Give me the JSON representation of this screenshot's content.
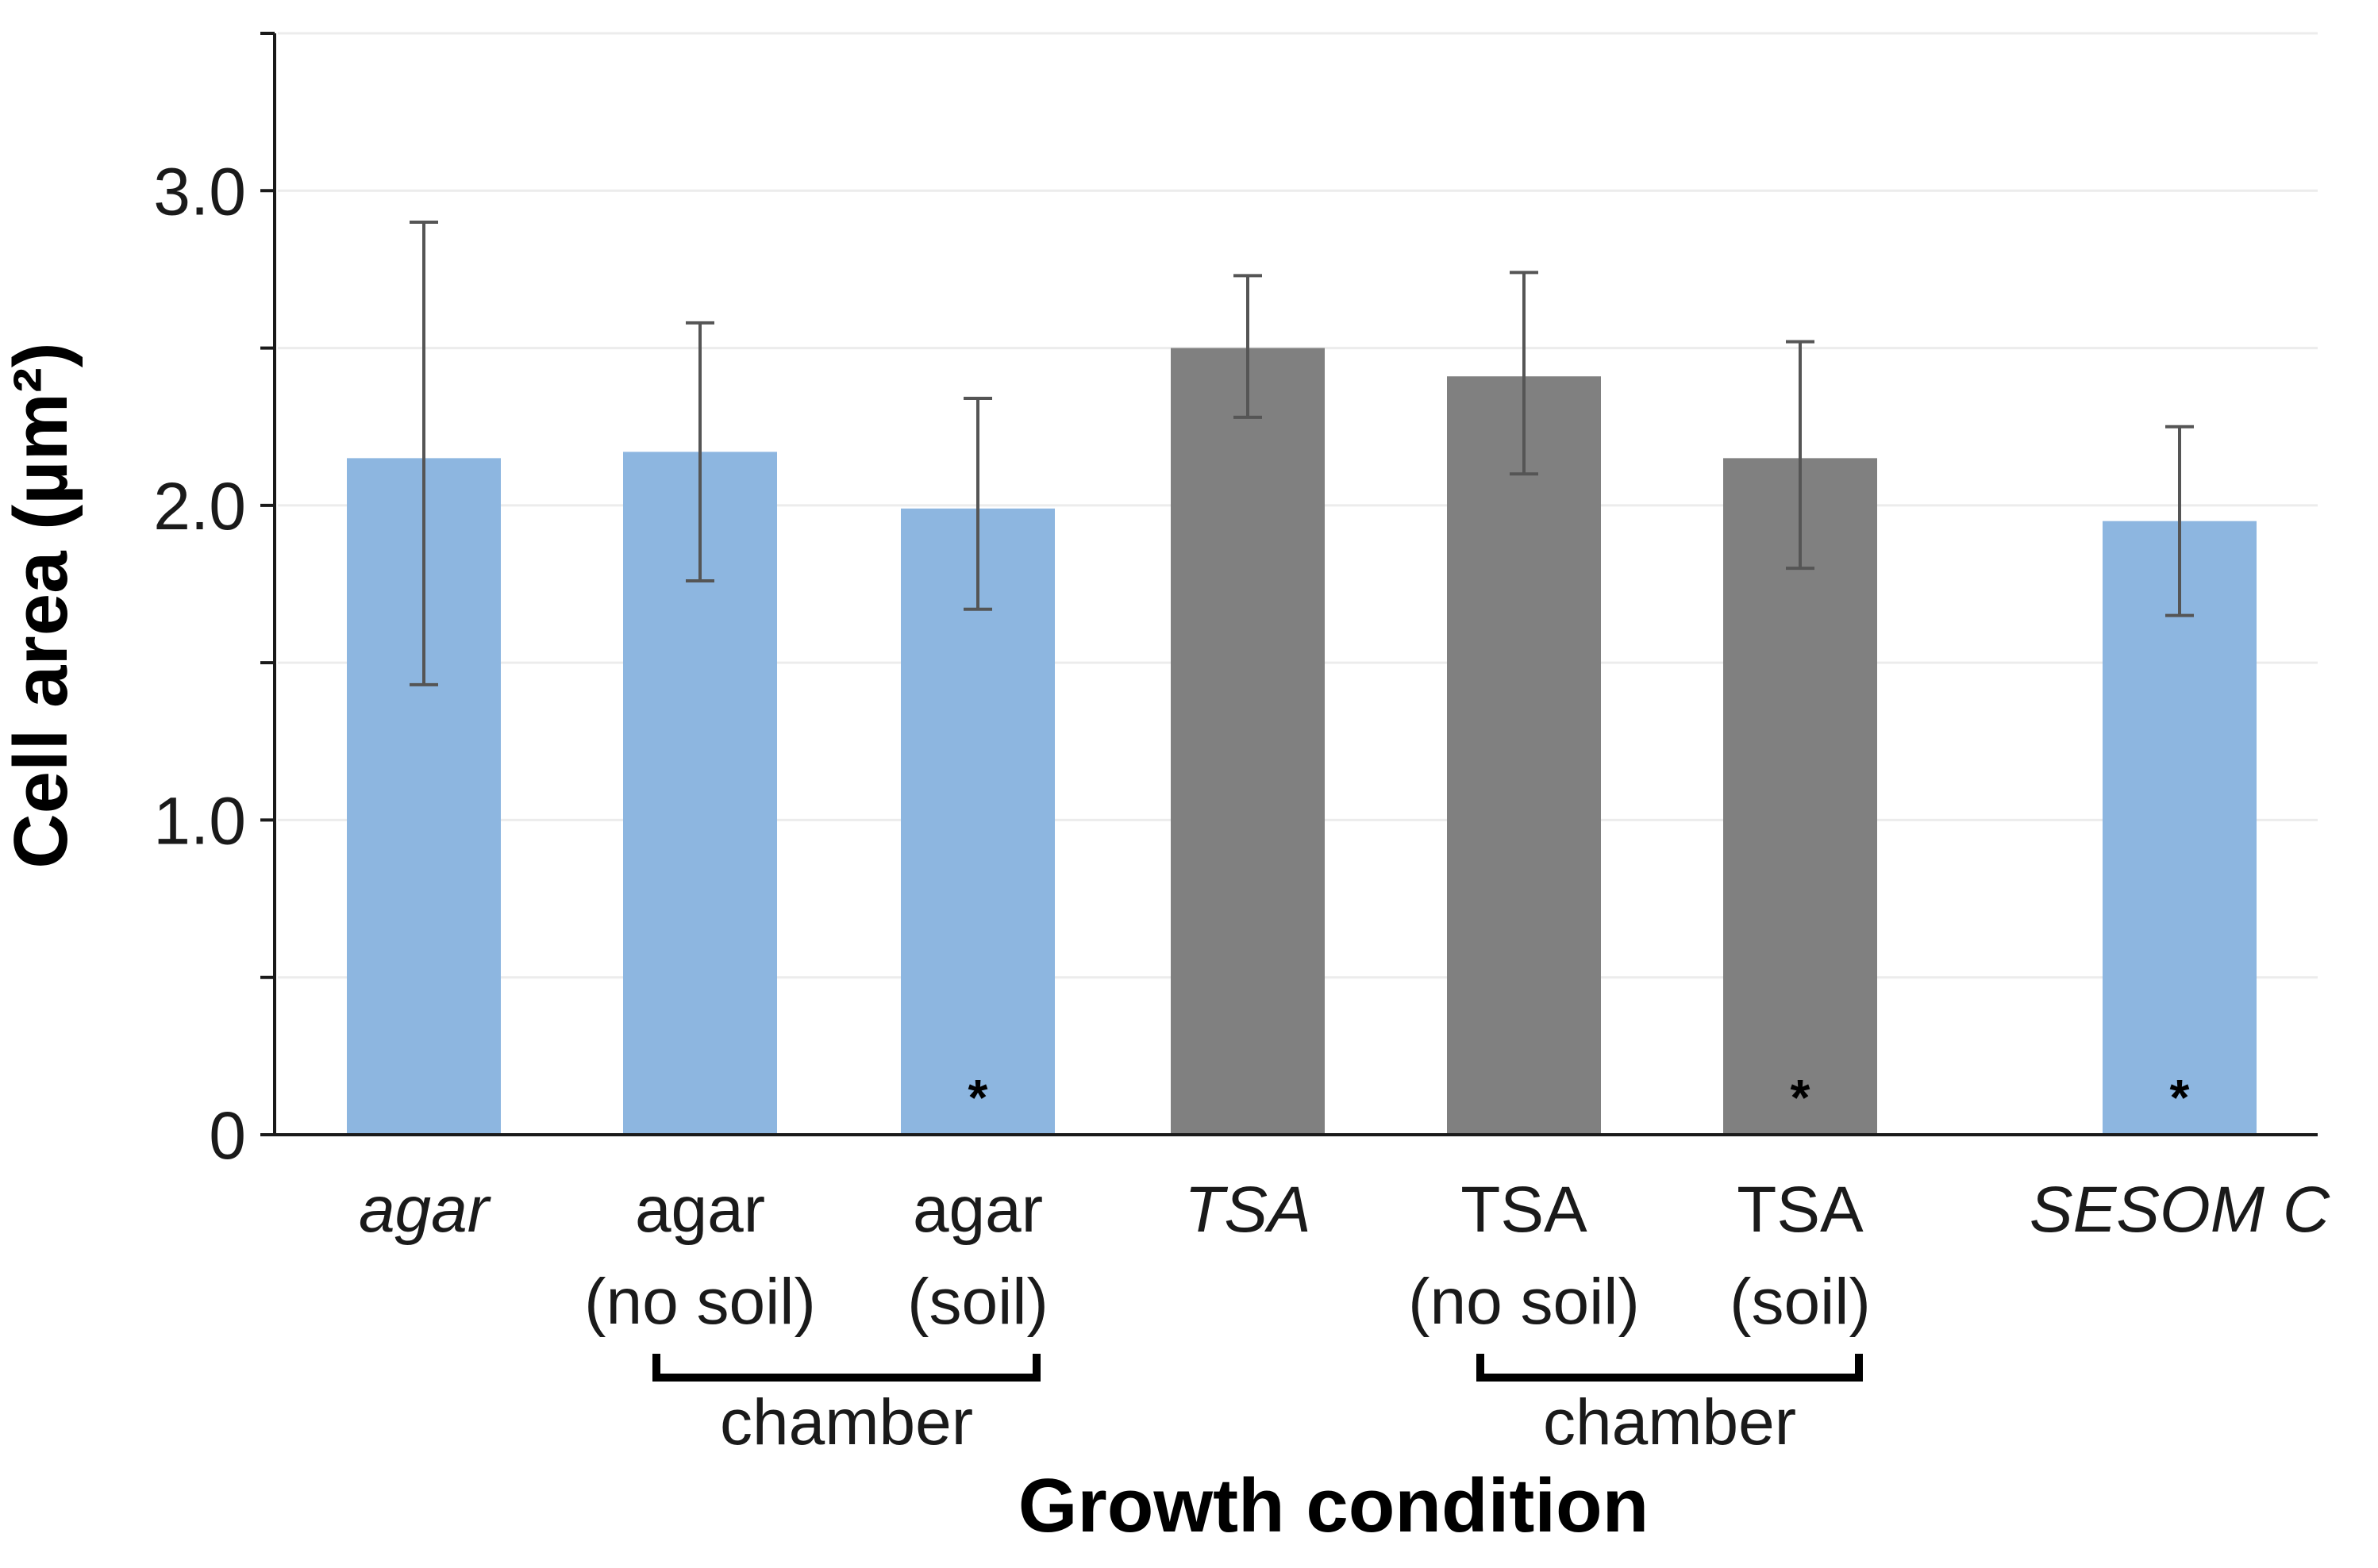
{
  "chart_data": {
    "type": "bar",
    "title": "",
    "xlabel": "Growth condition",
    "ylabel": "Cell area (µm²)",
    "ylim": [
      0,
      3.5
    ],
    "yticks": [
      {
        "value": 0,
        "label": "0"
      },
      {
        "value": 1,
        "label": "1.0"
      },
      {
        "value": 2,
        "label": "2.0"
      },
      {
        "value": 3,
        "label": "3.0"
      }
    ],
    "grid": true,
    "categories": [
      {
        "line1": "agar",
        "line2": "",
        "italic": true
      },
      {
        "line1": "agar",
        "line2": "(no soil)",
        "italic": false
      },
      {
        "line1": "agar",
        "line2": "(soil)",
        "italic": false
      },
      {
        "line1": "TSA",
        "line2": "",
        "italic": true
      },
      {
        "line1": "TSA",
        "line2": "(no soil)",
        "italic": false
      },
      {
        "line1": "TSA",
        "line2": "(soil)",
        "italic": false
      },
      {
        "line1": "SESOM C",
        "line2": "",
        "italic": true
      }
    ],
    "values": [
      2.15,
      2.17,
      1.99,
      2.5,
      2.41,
      2.15,
      1.95
    ],
    "error_low": [
      1.43,
      1.76,
      1.67,
      2.28,
      2.1,
      1.8,
      1.65
    ],
    "error_high": [
      2.9,
      2.58,
      2.34,
      2.73,
      2.74,
      2.52,
      2.25
    ],
    "significant": [
      false,
      false,
      true,
      false,
      false,
      true,
      true
    ],
    "significance_marker": "*",
    "bar_colors": [
      "#8db6e0",
      "#8db6e0",
      "#8db6e0",
      "#808080",
      "#808080",
      "#808080",
      "#8db6e0"
    ],
    "groups": [
      {
        "label": "chamber",
        "from": 1,
        "to": 2
      },
      {
        "label": "chamber",
        "from": 4,
        "to": 5
      }
    ]
  },
  "colors": {
    "axis": "#1a1a1a",
    "grid": "#ececec",
    "error_bar": "#555555",
    "bracket": "#000000"
  }
}
